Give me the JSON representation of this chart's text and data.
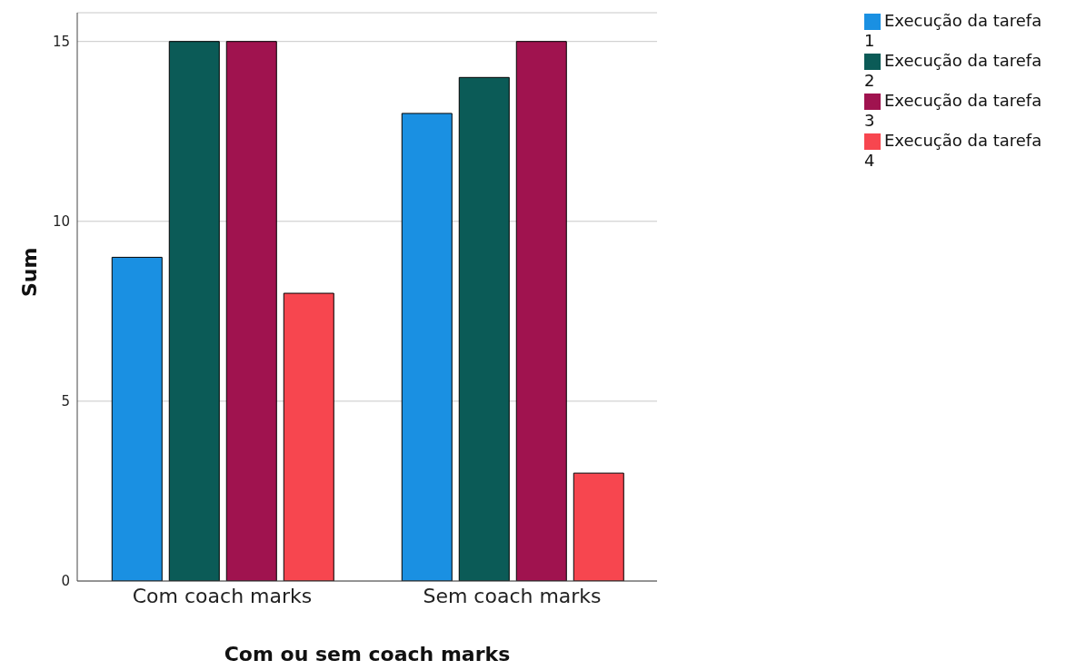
{
  "chart_data": {
    "type": "bar",
    "xlabel": "Com ou sem coach marks",
    "ylabel": "Sum",
    "categories": [
      "Com coach marks",
      "Sem coach marks"
    ],
    "series": [
      {
        "name": "Execução da tarefa 1",
        "color": "#1a90e2",
        "values": [
          9,
          13
        ]
      },
      {
        "name": "Execução da tarefa 2",
        "color": "#0b5b57",
        "values": [
          15,
          14
        ]
      },
      {
        "name": "Execução da tarefa 3",
        "color": "#a0134f",
        "values": [
          15,
          15
        ]
      },
      {
        "name": "Execução da tarefa 4",
        "color": "#f7464f",
        "values": [
          8,
          3
        ]
      }
    ],
    "ylim": [
      0,
      15.8
    ],
    "yticks": [
      0,
      5,
      10,
      15
    ],
    "grid": "y",
    "legend": "top right"
  }
}
